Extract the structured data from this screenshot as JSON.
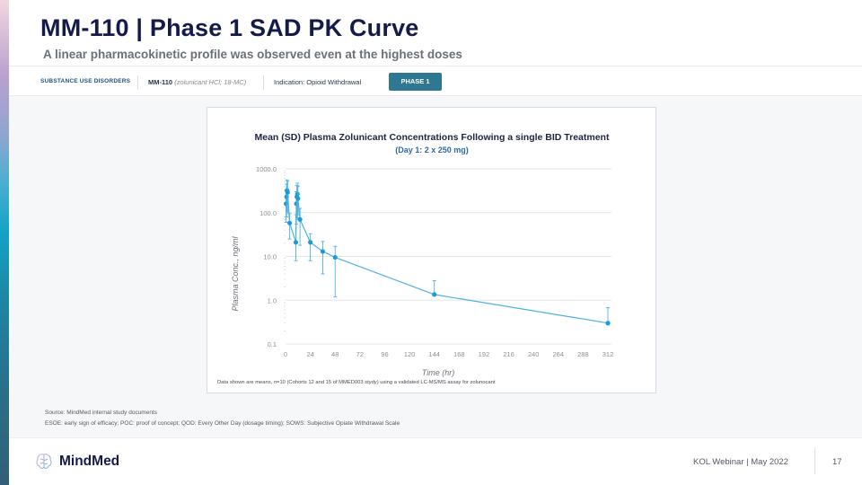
{
  "header": {
    "title": "MM-110 | Phase 1 SAD PK Curve",
    "subtitle": "A linear pharmacokinetic profile was observed even at the highest doses"
  },
  "tags": {
    "category": "SUBSTANCE USE DISORDERS",
    "compound": "MM-110",
    "compound_detail": "(zolunicant HCl; 18-MC)",
    "indication": "Indication: Opioid Withdrawal",
    "phase": "PHASE 1"
  },
  "chart_note": "Data shown are means, n=10 (Cohorts 12 and 15 of MMED003 stydy) using a validated LC-MS/MS assay for zolunocant",
  "footnotes": {
    "source": "Source: MindMed internal study documents",
    "abbreviations": "ESOE: early sign of efficacy; POC: proof of concept; QOD: Every Other Day (dosage timing); SOWS: Subjective Opiate Withdrawal Scale"
  },
  "footer": {
    "brand": "MindMed",
    "event": "KOL Webinar  |  May 2022",
    "page_number": "17"
  },
  "colors": {
    "series": "#1e9ad6",
    "line": "#4fb0de",
    "phase_badge": "#2f7893",
    "title": "#141a4a"
  },
  "chart_data": {
    "type": "line",
    "title": "Mean (SD) Plasma Zolunicant Concentrations Following a single BID Treatment",
    "subtitle": "(Day 1: 2 x 250 mg)",
    "xlabel": "Time (hr)",
    "ylabel": "Plasma Conc., ng/ml",
    "yscale": "log",
    "xlim": [
      0,
      312
    ],
    "ylim": [
      0.1,
      1000
    ],
    "x_ticks": [
      0,
      24,
      48,
      72,
      96,
      120,
      144,
      168,
      192,
      216,
      240,
      264,
      288,
      312
    ],
    "y_ticks": [
      {
        "value": 0.1,
        "label": "0.1"
      },
      {
        "value": 1,
        "label": "1.0"
      },
      {
        "value": 10,
        "label": "10.0"
      },
      {
        "value": 100,
        "label": "100.0"
      },
      {
        "value": 1000,
        "label": "1000.0"
      }
    ],
    "grid": true,
    "series": [
      {
        "name": "Zolunicant (2 x 250 mg)",
        "points": [
          {
            "x": 0.5,
            "y": 160,
            "sd_hi": 330,
            "sd_lo": 60
          },
          {
            "x": 1,
            "y": 230,
            "sd_hi": 450,
            "sd_lo": 80
          },
          {
            "x": 1.5,
            "y": 320,
            "sd_hi": 560,
            "sd_lo": 110
          },
          {
            "x": 2,
            "y": 290,
            "sd_hi": 520,
            "sd_lo": 100
          },
          {
            "x": 4,
            "y": 58,
            "sd_hi": 95,
            "sd_lo": 25
          },
          {
            "x": 10,
            "y": 21,
            "sd_hi": 90,
            "sd_lo": 8
          },
          {
            "x": 10.5,
            "y": 160,
            "sd_hi": 300,
            "sd_lo": 55
          },
          {
            "x": 11,
            "y": 230,
            "sd_hi": 420,
            "sd_lo": 75
          },
          {
            "x": 11.5,
            "y": 265,
            "sd_hi": 470,
            "sd_lo": 90
          },
          {
            "x": 12,
            "y": 210,
            "sd_hi": 400,
            "sd_lo": 70
          },
          {
            "x": 14,
            "y": 70,
            "sd_hi": 125,
            "sd_lo": 18
          },
          {
            "x": 24,
            "y": 21,
            "sd_hi": 33,
            "sd_lo": 8
          },
          {
            "x": 36,
            "y": 13,
            "sd_hi": 22,
            "sd_lo": 4
          },
          {
            "x": 48,
            "y": 9.5,
            "sd_hi": 17,
            "sd_lo": 1.2
          },
          {
            "x": 144,
            "y": 1.35,
            "sd_hi": 2.8,
            "sd_lo": 1.35
          },
          {
            "x": 312,
            "y": 0.3,
            "sd_hi": 0.68,
            "sd_lo": 0.3
          }
        ]
      }
    ]
  }
}
